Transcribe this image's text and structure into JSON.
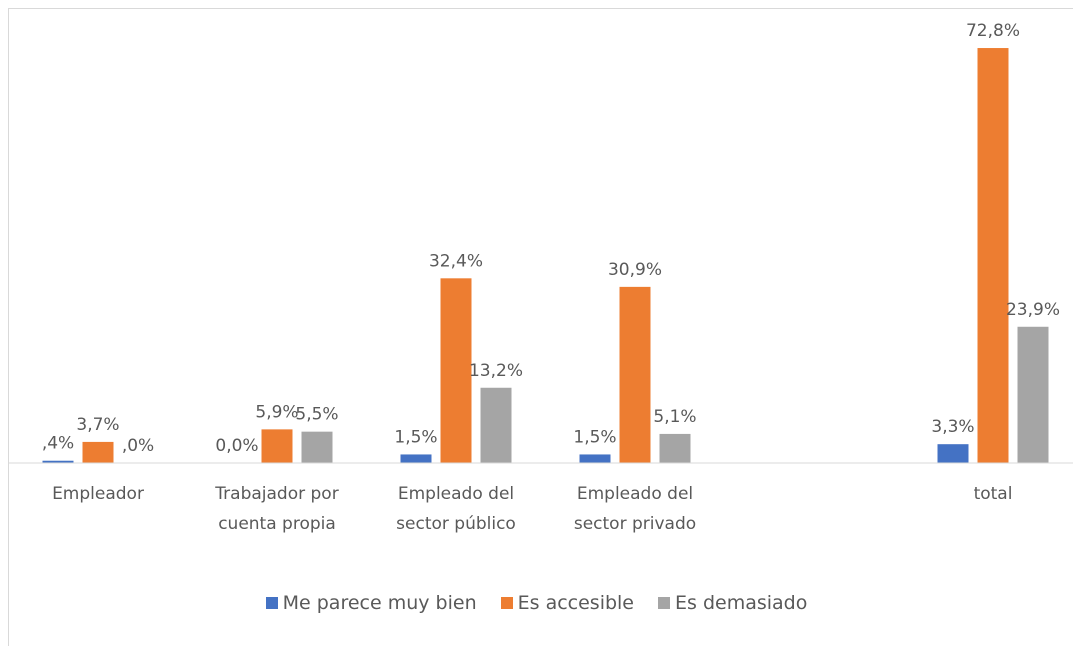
{
  "chart_data": {
    "type": "bar",
    "categories": [
      "Empleador",
      "Trabajador por cuenta propia",
      "Empleado del sector público",
      "Empleado del sector privado",
      null,
      "total"
    ],
    "series": [
      {
        "name": "Me parece muy bien",
        "color": "#4472c4",
        "values": [
          0.4,
          0.0,
          1.5,
          1.5,
          null,
          3.3
        ],
        "value_labels": [
          ",4%",
          "0,0%",
          "1,5%",
          "1,5%",
          null,
          "3,3%"
        ]
      },
      {
        "name": "Es accesible",
        "color": "#ed7d31",
        "values": [
          3.7,
          5.9,
          32.4,
          30.9,
          null,
          72.8
        ],
        "value_labels": [
          "3,7%",
          "5,9%",
          "32,4%",
          "30,9%",
          null,
          "72,8%"
        ]
      },
      {
        "name": "Es demasiado",
        "color": "#a5a5a5",
        "values": [
          0.0,
          5.5,
          13.2,
          5.1,
          null,
          23.9
        ],
        "value_labels": [
          ",0%",
          "5,5%",
          "13,2%",
          "5,1%",
          null,
          "23,9%"
        ]
      }
    ],
    "ylim": [
      0,
      80
    ],
    "legend": "bottom"
  }
}
